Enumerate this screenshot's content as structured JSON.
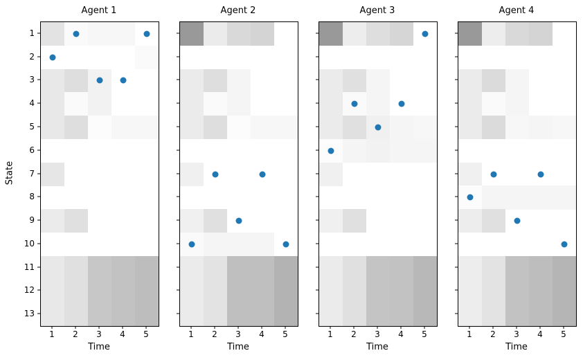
{
  "figure": {
    "xlabel": "Time",
    "ylabel": "State",
    "x_ticks": [
      "1",
      "2",
      "3",
      "4",
      "5"
    ],
    "y_ticks": [
      "1",
      "2",
      "3",
      "4",
      "5",
      "6",
      "7",
      "8",
      "9",
      "10",
      "11",
      "12",
      "13"
    ],
    "point_color": "#1f77b4",
    "colormap": "Greys",
    "background": "#ffffff"
  },
  "chart_data": [
    {
      "type": "heatmap",
      "title": "Agent 1",
      "x": [
        1,
        2,
        3,
        4,
        5
      ],
      "states": [
        1,
        2,
        3,
        4,
        5,
        6,
        7,
        8,
        9,
        10,
        11,
        12,
        13
      ],
      "heatmap": [
        [
          0.11,
          0.02,
          0.03,
          0.03,
          0.0
        ],
        [
          0.0,
          0.0,
          0.0,
          0.0,
          0.02
        ],
        [
          0.09,
          0.13,
          0.05,
          0.0,
          0.0
        ],
        [
          0.09,
          0.02,
          0.05,
          0.0,
          0.0
        ],
        [
          0.09,
          0.13,
          0.01,
          0.03,
          0.03
        ],
        [
          0.0,
          0.0,
          0.0,
          0.0,
          0.0
        ],
        [
          0.1,
          0.0,
          0.0,
          0.0,
          0.0
        ],
        [
          0.0,
          0.0,
          0.0,
          0.0,
          0.0
        ],
        [
          0.08,
          0.12,
          0.0,
          0.0,
          0.0
        ],
        [
          0.0,
          0.0,
          0.0,
          0.0,
          0.0
        ],
        [
          0.09,
          0.12,
          0.22,
          0.24,
          0.26
        ],
        [
          0.09,
          0.12,
          0.22,
          0.24,
          0.26
        ],
        [
          0.09,
          0.12,
          0.22,
          0.24,
          0.26
        ]
      ],
      "scatter": {
        "x": [
          1,
          2,
          3,
          4,
          5
        ],
        "y": [
          2,
          1,
          3,
          3,
          1
        ]
      }
    },
    {
      "type": "heatmap",
      "title": "Agent 2",
      "x": [
        1,
        2,
        3,
        4,
        5
      ],
      "states": [
        1,
        2,
        3,
        4,
        5,
        6,
        7,
        8,
        9,
        10,
        11,
        12,
        13
      ],
      "heatmap": [
        [
          0.4,
          0.08,
          0.15,
          0.17,
          0.0
        ],
        [
          0.0,
          0.0,
          0.0,
          0.0,
          0.0
        ],
        [
          0.08,
          0.13,
          0.04,
          0.0,
          0.0
        ],
        [
          0.08,
          0.02,
          0.04,
          0.0,
          0.0
        ],
        [
          0.08,
          0.13,
          0.01,
          0.03,
          0.03
        ],
        [
          0.0,
          0.0,
          0.0,
          0.0,
          0.0
        ],
        [
          0.06,
          0.0,
          0.0,
          0.0,
          0.0
        ],
        [
          0.0,
          0.0,
          0.0,
          0.0,
          0.0
        ],
        [
          0.06,
          0.12,
          0.0,
          0.0,
          0.0
        ],
        [
          0.02,
          0.04,
          0.04,
          0.04,
          0.0
        ],
        [
          0.08,
          0.11,
          0.25,
          0.25,
          0.3
        ],
        [
          0.08,
          0.11,
          0.25,
          0.25,
          0.3
        ],
        [
          0.08,
          0.11,
          0.25,
          0.25,
          0.3
        ]
      ],
      "scatter": {
        "x": [
          1,
          2,
          3,
          4,
          5
        ],
        "y": [
          10,
          7,
          9,
          7,
          10
        ]
      }
    },
    {
      "type": "heatmap",
      "title": "Agent 3",
      "x": [
        1,
        2,
        3,
        4,
        5
      ],
      "states": [
        1,
        2,
        3,
        4,
        5,
        6,
        7,
        8,
        9,
        10,
        11,
        12,
        13
      ],
      "heatmap": [
        [
          0.4,
          0.07,
          0.13,
          0.16,
          0.0
        ],
        [
          0.0,
          0.0,
          0.0,
          0.0,
          0.0
        ],
        [
          0.08,
          0.12,
          0.04,
          0.0,
          0.0
        ],
        [
          0.08,
          0.02,
          0.04,
          0.0,
          0.0
        ],
        [
          0.08,
          0.12,
          0.06,
          0.04,
          0.03
        ],
        [
          0.01,
          0.04,
          0.05,
          0.04,
          0.04
        ],
        [
          0.06,
          0.0,
          0.0,
          0.0,
          0.0
        ],
        [
          0.0,
          0.0,
          0.0,
          0.0,
          0.0
        ],
        [
          0.06,
          0.12,
          0.0,
          0.0,
          0.0
        ],
        [
          0.0,
          0.0,
          0.0,
          0.0,
          0.0
        ],
        [
          0.08,
          0.12,
          0.23,
          0.24,
          0.28
        ],
        [
          0.08,
          0.12,
          0.23,
          0.24,
          0.28
        ],
        [
          0.08,
          0.12,
          0.23,
          0.24,
          0.28
        ]
      ],
      "scatter": {
        "x": [
          1,
          2,
          3,
          4,
          5
        ],
        "y": [
          6,
          4,
          5,
          4,
          1
        ]
      }
    },
    {
      "type": "heatmap",
      "title": "Agent 4",
      "x": [
        1,
        2,
        3,
        4,
        5
      ],
      "states": [
        1,
        2,
        3,
        4,
        5,
        6,
        7,
        8,
        9,
        10,
        11,
        12,
        13
      ],
      "heatmap": [
        [
          0.4,
          0.07,
          0.15,
          0.17,
          0.0
        ],
        [
          0.0,
          0.0,
          0.0,
          0.0,
          0.0
        ],
        [
          0.08,
          0.14,
          0.04,
          0.0,
          0.0
        ],
        [
          0.08,
          0.02,
          0.04,
          0.0,
          0.0
        ],
        [
          0.08,
          0.14,
          0.03,
          0.04,
          0.03
        ],
        [
          0.0,
          0.0,
          0.0,
          0.0,
          0.0
        ],
        [
          0.06,
          0.0,
          0.0,
          0.0,
          0.0
        ],
        [
          0.01,
          0.04,
          0.04,
          0.04,
          0.04
        ],
        [
          0.07,
          0.12,
          0.0,
          0.0,
          0.0
        ],
        [
          0.0,
          0.0,
          0.0,
          0.0,
          0.0
        ],
        [
          0.07,
          0.11,
          0.24,
          0.26,
          0.29
        ],
        [
          0.07,
          0.11,
          0.24,
          0.26,
          0.29
        ],
        [
          0.07,
          0.11,
          0.24,
          0.26,
          0.29
        ]
      ],
      "scatter": {
        "x": [
          1,
          2,
          3,
          4,
          5
        ],
        "y": [
          8,
          7,
          9,
          7,
          10
        ]
      }
    }
  ]
}
